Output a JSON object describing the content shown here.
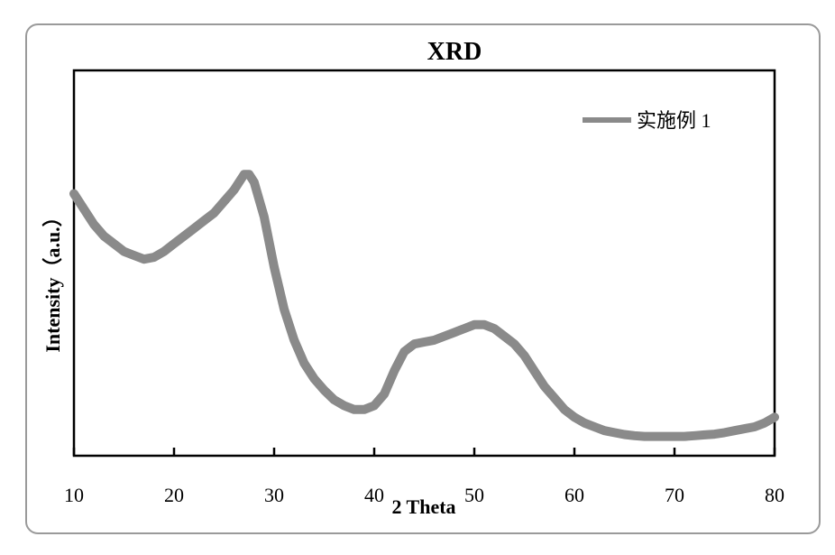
{
  "chart_data": {
    "type": "line",
    "title": "XRD",
    "xlabel": "2 Theta",
    "ylabel": "Intensity（a.u.）",
    "xlim": [
      10,
      80
    ],
    "ylim": [
      0,
      100
    ],
    "xticks": [
      10,
      20,
      30,
      40,
      50,
      60,
      70,
      80
    ],
    "legend_position": "top-right",
    "grid": false,
    "y_tick_labels_shown": false,
    "series": [
      {
        "name": "实施例 1",
        "color": "#8a8a8a",
        "x": [
          10,
          11,
          12,
          13,
          14,
          15,
          16,
          17,
          18,
          19,
          20,
          21,
          22,
          23,
          24,
          25,
          26,
          27,
          27.5,
          28,
          29,
          30,
          31,
          32,
          33,
          34,
          35,
          36,
          37,
          38,
          39,
          40,
          41,
          42,
          43,
          44,
          45,
          46,
          47,
          48,
          49,
          50,
          51,
          52,
          53,
          54,
          55,
          56,
          57,
          58,
          59,
          60,
          61,
          62,
          63,
          64,
          65,
          66,
          67,
          68,
          69,
          70,
          71,
          72,
          73,
          74,
          75,
          76,
          77,
          78,
          79,
          80
        ],
        "y": [
          68,
          64,
          60,
          57,
          55,
          53,
          52,
          51,
          51.5,
          53,
          55,
          57,
          59,
          61,
          63,
          66,
          69,
          73,
          73,
          71,
          62,
          49,
          38,
          30,
          24,
          20,
          17,
          14.5,
          13,
          12,
          12,
          13,
          16,
          22,
          27,
          29,
          29.5,
          30,
          31,
          32,
          33,
          34,
          34,
          33,
          31,
          29,
          26,
          22,
          18,
          15,
          12,
          10,
          8.5,
          7.5,
          6.5,
          6,
          5.5,
          5.2,
          5,
          5,
          5,
          5,
          5,
          5.2,
          5.4,
          5.6,
          6,
          6.5,
          7,
          7.5,
          8.5,
          10
        ]
      }
    ]
  }
}
